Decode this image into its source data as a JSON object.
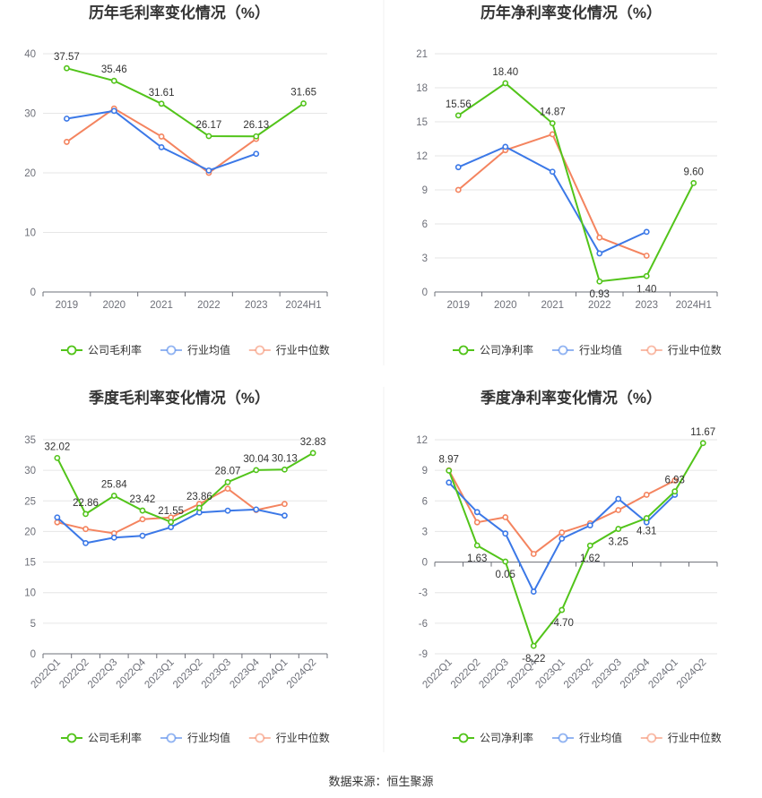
{
  "source": "数据来源：恒生聚源",
  "colors": {
    "company": "#52c41a",
    "avg": "#3b78e7",
    "median": "#f4845f"
  },
  "chart_data": [
    {
      "type": "line",
      "title": "历年毛利率变化情况（%）",
      "categories": [
        "2019",
        "2020",
        "2021",
        "2022",
        "2023",
        "2024H1"
      ],
      "ylim": [
        0,
        40
      ],
      "yticks": [
        0,
        10,
        20,
        30,
        40
      ],
      "grid": true,
      "legend": "bottom",
      "series": [
        {
          "name": "公司毛利率",
          "key": "company",
          "values": [
            37.57,
            35.46,
            31.61,
            26.17,
            26.13,
            31.65
          ],
          "labels": [
            "37.57",
            "35.46",
            "31.61",
            "26.17",
            "26.13",
            "31.65"
          ]
        },
        {
          "name": "行业均值",
          "key": "avg",
          "values": [
            29.1,
            30.4,
            24.3,
            20.4,
            23.2,
            null
          ]
        },
        {
          "name": "行业中位数",
          "key": "median",
          "values": [
            25.2,
            30.8,
            26.1,
            20.0,
            25.7,
            null
          ]
        }
      ]
    },
    {
      "type": "line",
      "title": "历年净利率变化情况（%）",
      "categories": [
        "2019",
        "2020",
        "2021",
        "2022",
        "2023",
        "2024H1"
      ],
      "ylim": [
        0,
        21
      ],
      "yticks": [
        0,
        3,
        6,
        9,
        12,
        15,
        18,
        21
      ],
      "grid": true,
      "legend": "bottom",
      "series": [
        {
          "name": "公司净利率",
          "key": "company",
          "values": [
            15.56,
            18.4,
            14.87,
            0.93,
            1.4,
            9.6
          ],
          "labels": [
            "15.56",
            "18.40",
            "14.87",
            "0.93",
            "1.40",
            "9.60"
          ]
        },
        {
          "name": "行业均值",
          "key": "avg",
          "values": [
            11.0,
            12.8,
            10.6,
            3.4,
            5.3,
            null
          ]
        },
        {
          "name": "行业中位数",
          "key": "median",
          "values": [
            9.0,
            12.5,
            13.9,
            4.8,
            3.2,
            null
          ]
        }
      ]
    },
    {
      "type": "line",
      "title": "季度毛利率变化情况（%）",
      "categories": [
        "2022Q1",
        "2022Q2",
        "2022Q3",
        "2022Q4",
        "2023Q1",
        "2023Q2",
        "2023Q3",
        "2023Q4",
        "2024Q1",
        "2024Q2"
      ],
      "ylim": [
        0,
        35
      ],
      "yticks": [
        0,
        5,
        10,
        15,
        20,
        25,
        30,
        35
      ],
      "grid": true,
      "legend": "bottom",
      "series": [
        {
          "name": "公司毛利率",
          "key": "company",
          "values": [
            32.02,
            22.86,
            25.84,
            23.42,
            21.55,
            23.86,
            28.07,
            30.04,
            30.13,
            32.83
          ],
          "labels": [
            "32.02",
            "22.86",
            "25.84",
            "23.42",
            "21.55",
            "23.86",
            "28.07",
            "30.04",
            "30.13",
            "32.83"
          ]
        },
        {
          "name": "行业均值",
          "key": "avg",
          "values": [
            22.3,
            18.1,
            19.0,
            19.3,
            20.7,
            23.1,
            23.4,
            23.6,
            22.6,
            null
          ]
        },
        {
          "name": "行业中位数",
          "key": "median",
          "values": [
            21.5,
            20.4,
            19.7,
            22.0,
            22.3,
            24.5,
            27.0,
            23.5,
            24.5,
            null
          ]
        }
      ]
    },
    {
      "type": "line",
      "title": "季度净利率变化情况（%）",
      "categories": [
        "2022Q1",
        "2022Q2",
        "2022Q3",
        "2022Q4",
        "2023Q1",
        "2023Q2",
        "2023Q3",
        "2023Q4",
        "2024Q1",
        "2024Q2"
      ],
      "ylim": [
        -9,
        12
      ],
      "yticks": [
        -9,
        -6,
        -3,
        0,
        3,
        6,
        9,
        12
      ],
      "grid": true,
      "legend": "bottom",
      "series": [
        {
          "name": "公司净利率",
          "key": "company",
          "values": [
            8.97,
            1.63,
            0.05,
            -8.22,
            -4.7,
            1.62,
            3.25,
            4.31,
            6.93,
            11.67
          ],
          "labels": [
            "8.97",
            "1.63",
            "0.05",
            "-8.22",
            "-4.70",
            "1.62",
            "3.25",
            "4.31",
            "6.93",
            "11.67"
          ]
        },
        {
          "name": "行业均值",
          "key": "avg",
          "values": [
            7.8,
            4.9,
            2.8,
            -2.9,
            2.3,
            3.6,
            6.2,
            3.9,
            6.6,
            null
          ]
        },
        {
          "name": "行业中位数",
          "key": "median",
          "values": [
            9.0,
            3.9,
            4.4,
            0.8,
            2.9,
            3.8,
            5.1,
            6.6,
            8.0,
            null
          ]
        }
      ]
    }
  ]
}
